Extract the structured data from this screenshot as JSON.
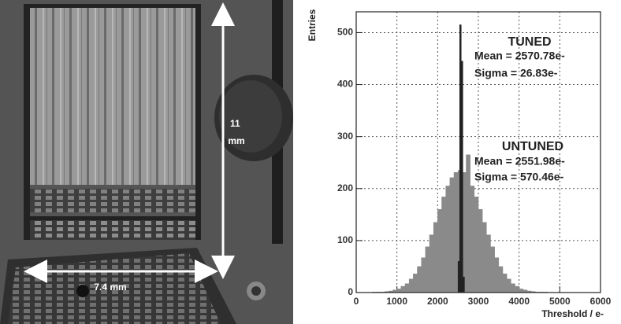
{
  "photo": {
    "height_label_lines": [
      "11",
      "mm"
    ],
    "width_label": "7.4 mm"
  },
  "chart_data": {
    "type": "histogram",
    "y_label": "Entries",
    "x_label": "Threshold / e-",
    "xlim": [
      0,
      6000
    ],
    "ylim": [
      0,
      540
    ],
    "xticks": [
      0,
      1000,
      2000,
      3000,
      4000,
      5000,
      6000
    ],
    "yticks": [
      0,
      100,
      200,
      300,
      400,
      500
    ],
    "grid": true,
    "series": [
      {
        "name": "UNTUNED",
        "color": "#8a8a8a",
        "bins": [
          0,
          100,
          200,
          300,
          400,
          500,
          600,
          700,
          800,
          900,
          1000,
          1100,
          1200,
          1300,
          1400,
          1500,
          1600,
          1700,
          1800,
          1900,
          2000,
          2100,
          2200,
          2300,
          2400,
          2500,
          2600,
          2700,
          2800,
          2900,
          3000,
          3100,
          3200,
          3300,
          3400,
          3500,
          3600,
          3700,
          3800,
          3900,
          4000,
          4100,
          4200,
          4300,
          4400,
          4500,
          4600,
          4700,
          4800,
          4900,
          5000,
          5100,
          5200,
          5300,
          5400,
          5500,
          5600,
          5700,
          5800,
          5900,
          6000
        ],
        "values": [
          0,
          0,
          0,
          0,
          1,
          1,
          1,
          2,
          3,
          5,
          7,
          12,
          17,
          26,
          36,
          50,
          67,
          88,
          111,
          135,
          160,
          184,
          205,
          221,
          231,
          235,
          231,
          265,
          205,
          184,
          160,
          135,
          111,
          88,
          67,
          50,
          36,
          26,
          17,
          12,
          7,
          5,
          3,
          2,
          1,
          1,
          1,
          0,
          0,
          0,
          0,
          0,
          0,
          0,
          0,
          0,
          0,
          0,
          0,
          0
        ],
        "annotations": [
          "Mean = 2551.98e-",
          "Sigma = 570.46e-"
        ]
      },
      {
        "name": "TUNED",
        "color": "#222222",
        "bins": [
          2500,
          2540,
          2580,
          2620,
          2660
        ],
        "values": [
          60,
          515,
          445,
          30
        ],
        "annotations": [
          "Mean = 2570.78e-",
          "Sigma = 26.83e-"
        ]
      }
    ]
  }
}
